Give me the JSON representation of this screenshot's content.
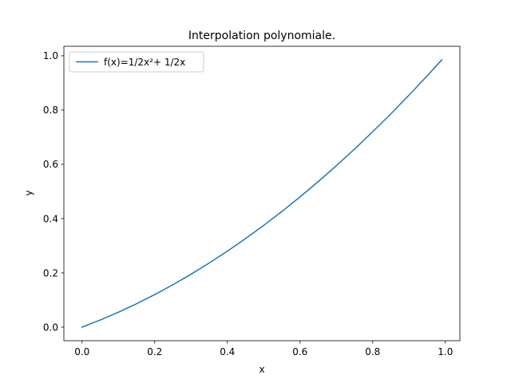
{
  "chart_data": {
    "type": "line",
    "title": "Interpolation polynomiale.",
    "xlabel": "x",
    "ylabel": "y",
    "xlim": [
      -0.05,
      1.04
    ],
    "ylim": [
      -0.05,
      1.035
    ],
    "xticks": [
      0.0,
      0.2,
      0.4,
      0.6,
      0.8,
      1.0
    ],
    "xtick_labels": [
      "0.0",
      "0.2",
      "0.4",
      "0.6",
      "0.8",
      "1.0"
    ],
    "yticks": [
      0.0,
      0.2,
      0.4,
      0.6,
      0.8,
      1.0
    ],
    "ytick_labels": [
      "0.0",
      "0.2",
      "0.4",
      "0.6",
      "0.8",
      "1.0"
    ],
    "grid": false,
    "legend": "upper-left",
    "series": [
      {
        "name": "f(x)=1/2x²+ 1/2x",
        "color": "#1f77b4",
        "x": [
          0.0,
          0.05,
          0.1,
          0.15,
          0.2,
          0.25,
          0.3,
          0.35,
          0.4,
          0.45,
          0.5,
          0.55,
          0.6,
          0.65,
          0.7,
          0.75,
          0.8,
          0.85,
          0.9,
          0.95,
          0.99
        ],
        "y": [
          0.0,
          0.02625,
          0.055,
          0.08625,
          0.12,
          0.15625,
          0.195,
          0.23625,
          0.28,
          0.32625,
          0.375,
          0.42625,
          0.48,
          0.53625,
          0.595,
          0.65625,
          0.72,
          0.78625,
          0.855,
          0.92625,
          0.98505
        ]
      }
    ]
  }
}
